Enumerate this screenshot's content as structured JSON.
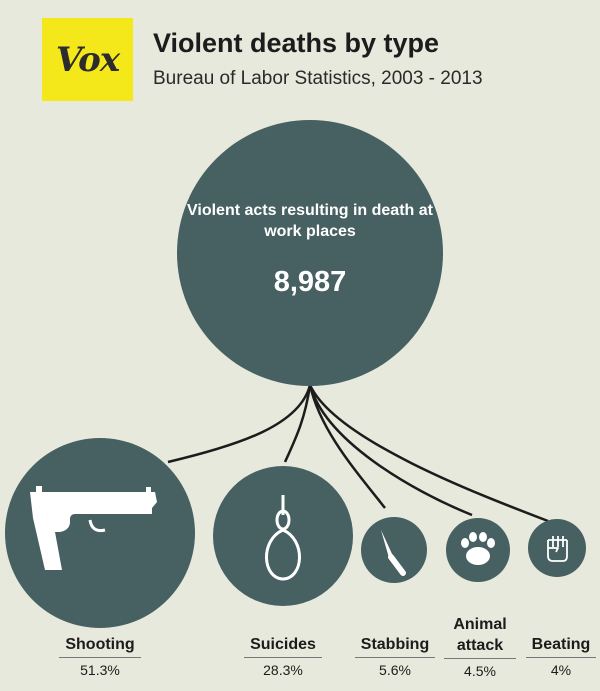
{
  "header": {
    "logo": "Vox",
    "title": "Violent deaths by type",
    "subtitle": "Bureau of Labor Statistics, 2003 - 2013"
  },
  "center": {
    "label": "Violent acts resulting in death at work places",
    "value": "8,987"
  },
  "categories": [
    {
      "name": "Shooting",
      "percent": "51.3%",
      "icon": "pistol-icon"
    },
    {
      "name": "Suicides",
      "percent": "28.3%",
      "icon": "noose-icon"
    },
    {
      "name": "Stabbing",
      "percent": "5.6%",
      "icon": "knife-icon"
    },
    {
      "name": "Animal attack",
      "percent": "4.5%",
      "icon": "paw-icon"
    },
    {
      "name": "Beating",
      "percent": "4%",
      "icon": "fist-icon"
    }
  ],
  "colors": {
    "background": "#e6e9dc",
    "circle": "#476062",
    "logo_bg": "#f5e81a",
    "text": "#1c1c1c",
    "icon": "#ffffff"
  }
}
